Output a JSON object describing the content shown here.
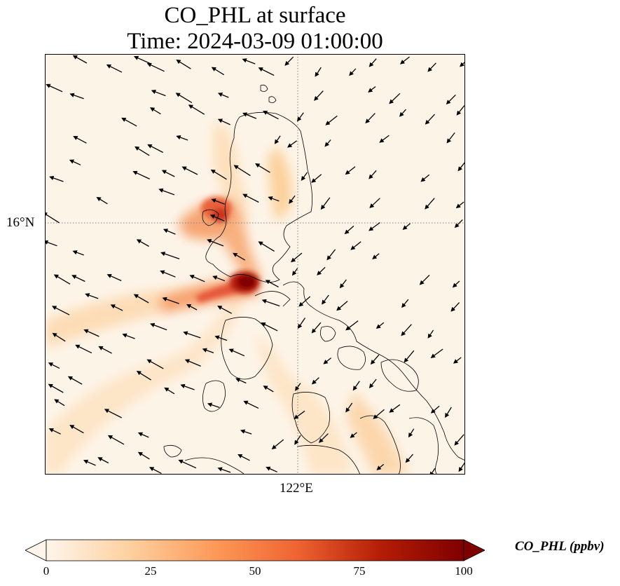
{
  "title": {
    "line1": "CO_PHL at surface",
    "line2": "Time: 2024-03-09 01:00:00"
  },
  "map": {
    "lat_label": "16°N",
    "lon_label": "122°E",
    "colors": {
      "background": "#fdf4e8",
      "coastline": "#000000",
      "gridline": "#808080"
    }
  },
  "colorbar": {
    "label": "CO_PHL (ppbv)",
    "ticks": [
      "0",
      "25",
      "50",
      "75",
      "100"
    ],
    "vmin": 0,
    "vmax": 100,
    "colormap": [
      "#fff5eb",
      "#fdd09f",
      "#fd9a5a",
      "#ef6432",
      "#b51d05",
      "#7f0000"
    ]
  }
}
